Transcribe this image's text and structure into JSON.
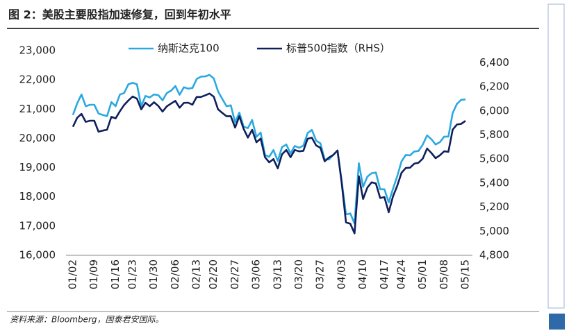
{
  "chart_data": {
    "type": "line",
    "title": "图 2：美股主要股指加速修复，回到年初水平",
    "source": "资料来源：Bloomberg，国泰君安国际。",
    "categories": [
      "01/02",
      null,
      null,
      null,
      null,
      "01/09",
      null,
      null,
      null,
      null,
      "01/16",
      null,
      null,
      null,
      "01/23",
      null,
      null,
      null,
      null,
      "01/30",
      null,
      null,
      null,
      null,
      "02/06",
      null,
      null,
      null,
      null,
      "02/13",
      null,
      null,
      null,
      "02/20",
      null,
      null,
      null,
      null,
      "02/27",
      null,
      null,
      null,
      null,
      "03/06",
      null,
      null,
      null,
      null,
      "03/13",
      null,
      null,
      null,
      null,
      "03/20",
      null,
      null,
      null,
      null,
      "03/27",
      null,
      null,
      null,
      null,
      "04/03",
      null,
      null,
      null,
      null,
      "04/10",
      null,
      null,
      null,
      null,
      "04/17",
      null,
      null,
      null,
      "04/24",
      null,
      null,
      null,
      null,
      "05/01",
      null,
      null,
      null,
      null,
      "05/08",
      null,
      null,
      null,
      null,
      "05/15"
    ],
    "series": [
      {
        "name": "纳斯达克100",
        "color": "#2aa9e0",
        "values": [
          20800,
          21200,
          21500,
          21100,
          21150,
          21150,
          20850,
          20800,
          20760,
          21240,
          21100,
          21500,
          21550,
          21850,
          21900,
          21850,
          21100,
          21450,
          21400,
          21500,
          21480,
          21300,
          21550,
          21630,
          21790,
          21490,
          21750,
          21700,
          21720,
          22030,
          22110,
          22120,
          22170,
          22050,
          21610,
          21350,
          21100,
          21130,
          20550,
          20880,
          20400,
          20350,
          20630,
          20050,
          20200,
          19430,
          19370,
          19600,
          19230,
          19700,
          19790,
          19480,
          19740,
          19680,
          19750,
          20180,
          20290,
          19920,
          19830,
          19280,
          19280,
          19430,
          19580,
          18520,
          17400,
          17430,
          17090,
          19150,
          18340,
          18690,
          18810,
          18830,
          18260,
          18260,
          17810,
          18270,
          18700,
          19210,
          19430,
          19420,
          19550,
          19570,
          19790,
          20100,
          19970,
          19790,
          19870,
          20060,
          20060,
          20870,
          21180,
          21320,
          21330
        ]
      },
      {
        "name": "标普500指数（RHS）",
        "color": "#0e1f5b",
        "axis": "y2",
        "values": [
          5868,
          5942,
          5975,
          5909,
          5918,
          5918,
          5827,
          5836,
          5843,
          5950,
          5937,
          5997,
          6049,
          6086,
          6119,
          6101,
          6012,
          6067,
          6039,
          6071,
          6041,
          5994,
          6037,
          6061,
          6083,
          6026,
          6066,
          6068,
          6051,
          6115,
          6115,
          6129,
          6144,
          6118,
          6013,
          5983,
          5955,
          5956,
          5861,
          5955,
          5850,
          5778,
          5842,
          5739,
          5770,
          5615,
          5572,
          5599,
          5522,
          5639,
          5675,
          5615,
          5675,
          5663,
          5668,
          5768,
          5777,
          5712,
          5693,
          5581,
          5612,
          5633,
          5671,
          5397,
          5074,
          5062,
          4982,
          5457,
          5268,
          5363,
          5406,
          5397,
          5276,
          5283,
          5158,
          5288,
          5376,
          5485,
          5525,
          5528,
          5561,
          5569,
          5604,
          5687,
          5650,
          5607,
          5631,
          5664,
          5660,
          5844,
          5886,
          5892,
          5917
        ]
      }
    ],
    "ylim": [
      16000,
      23000
    ],
    "yticks": [
      {
        "value": 16000,
        "label": "16,000"
      },
      {
        "value": 17000,
        "label": "17,000"
      },
      {
        "value": 18000,
        "label": "18,000"
      },
      {
        "value": 19000,
        "label": "19,000"
      },
      {
        "value": 20000,
        "label": "20,000"
      },
      {
        "value": 21000,
        "label": "21,000"
      },
      {
        "value": 22000,
        "label": "22,000"
      },
      {
        "value": 23000,
        "label": "23,000"
      }
    ],
    "y2lim": [
      4800,
      6500
    ],
    "y2ticks": [
      {
        "value": 4800,
        "label": "4,800"
      },
      {
        "value": 5000,
        "label": "5,000"
      },
      {
        "value": 5200,
        "label": "5,200"
      },
      {
        "value": 5400,
        "label": "5,400"
      },
      {
        "value": 5600,
        "label": "5,600"
      },
      {
        "value": 5800,
        "label": "5,800"
      },
      {
        "value": 6000,
        "label": "6,000"
      },
      {
        "value": 6200,
        "label": "6,200"
      },
      {
        "value": 6400,
        "label": "6,400"
      }
    ],
    "legend": "top"
  }
}
